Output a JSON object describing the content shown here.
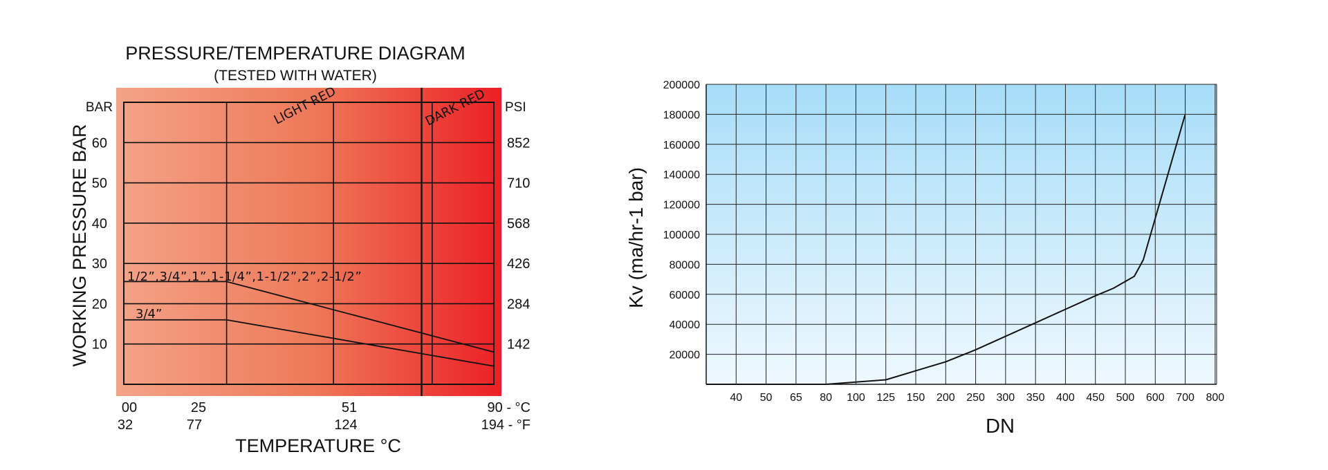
{
  "chart_data": [
    {
      "type": "line",
      "title": "PRESSURE/TEMPERATURE DIAGRAM",
      "subtitle": "(TESTED WITH WATER)",
      "xlabel": "TEMPERATURE °C",
      "ylabel": "WORKING PRESSURE BAR",
      "y_left_unit": "BAR",
      "y_right_unit": "PSI",
      "xlim": [
        0,
        90
      ],
      "ylim": [
        0,
        70
      ],
      "grid": true,
      "background": "red gradient (light to dark)",
      "colors": {
        "bg_light": "#f4a388",
        "bg_mid": "#ee7a5a",
        "bg_dark": "#ec2026",
        "line": "#111111"
      },
      "x_ticks_c": [
        {
          "value": 0,
          "label": "00"
        },
        {
          "value": 25,
          "label": "25"
        },
        {
          "value": 51,
          "label": "51"
        },
        {
          "value": 90,
          "label": "90 - °C"
        }
      ],
      "x_ticks_f": [
        {
          "value": 0,
          "label": "32"
        },
        {
          "value": 25,
          "label": "77"
        },
        {
          "value": 51,
          "label": "124"
        },
        {
          "value": 90,
          "label": "194 - °F"
        }
      ],
      "y_ticks_bar": [
        {
          "value": 10,
          "label": "10"
        },
        {
          "value": 20,
          "label": "20"
        },
        {
          "value": 30,
          "label": "30"
        },
        {
          "value": 40,
          "label": "40"
        },
        {
          "value": 50,
          "label": "50"
        },
        {
          "value": 60,
          "label": "60"
        }
      ],
      "y_ticks_psi": [
        {
          "value": 10,
          "label": "142"
        },
        {
          "value": 20,
          "label": "284"
        },
        {
          "value": 30,
          "label": "426"
        },
        {
          "value": 40,
          "label": "568"
        },
        {
          "value": 50,
          "label": "710"
        },
        {
          "value": 60,
          "label": "852"
        }
      ],
      "annotations": [
        {
          "text": "LIGHT RED",
          "x": 38,
          "y": 63
        },
        {
          "text": "DARK RED",
          "x": 78,
          "y": 63
        }
      ],
      "marker_x": 80,
      "series": [
        {
          "name": "1/2”,3/4”,1”,1-1/4”,1-1/2”,2”,2-1/2”",
          "x": [
            0,
            25,
            90
          ],
          "y": [
            25.5,
            25.5,
            8
          ]
        },
        {
          "name": "3/4”",
          "x": [
            0,
            25,
            90
          ],
          "y": [
            16,
            16,
            4.5
          ]
        }
      ]
    },
    {
      "type": "line",
      "title": "",
      "xlabel": "DN",
      "ylabel": "Kv (ma/hr-1 bar)",
      "ylim": [
        0,
        200000
      ],
      "grid": true,
      "background": "blue gradient (top to bottom)",
      "colors": {
        "bg_top": "#a7ddf8",
        "bg_bottom": "#eef8fe",
        "line": "#111111"
      },
      "categories": [
        "40",
        "50",
        "65",
        "80",
        "100",
        "125",
        "150",
        "200",
        "250",
        "300",
        "350",
        "400",
        "450",
        "500",
        "600",
        "700",
        "800"
      ],
      "y_ticks": [
        "200000",
        "180000",
        "160000",
        "140000",
        "120000",
        "100000",
        "80000",
        "60000",
        "40000",
        "20000"
      ],
      "series": [
        {
          "x": [
            0,
            1,
            2,
            3,
            4,
            5,
            6,
            7,
            8,
            9,
            10,
            11,
            12,
            13,
            13.6,
            14.3,
            14.6,
            16
          ],
          "y": [
            0,
            0,
            0,
            0,
            0,
            1500,
            3000,
            9000,
            15000,
            23000,
            32000,
            41000,
            50000,
            59000,
            64000,
            72000,
            83000,
            180000
          ]
        }
      ]
    }
  ]
}
